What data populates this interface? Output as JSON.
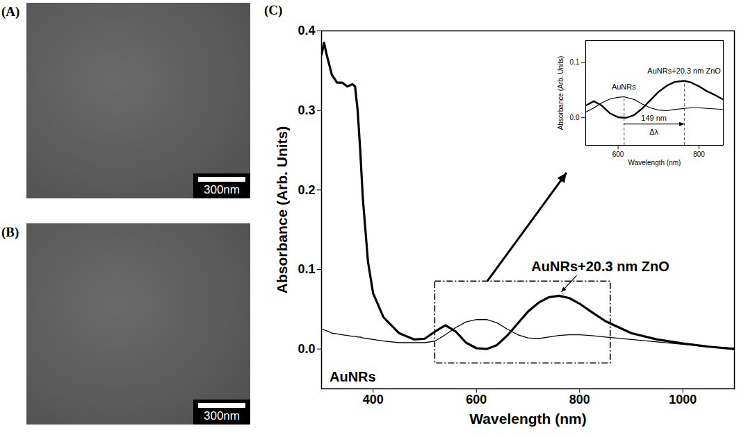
{
  "panels": [
    {
      "label": "(A)",
      "scale_bar": "300nm"
    },
    {
      "label": "(B)",
      "scale_bar": "300nm"
    },
    {
      "label": "(C)"
    }
  ],
  "chart_data": [
    {
      "type": "line",
      "x_label": "Wavelength (nm)",
      "y_label": "Absorbance (Arb. Units)",
      "x": [
        300,
        305,
        310,
        320,
        330,
        340,
        350,
        360,
        365,
        370,
        375,
        380,
        390,
        400,
        420,
        450,
        480,
        500,
        520,
        540,
        560,
        580,
        600,
        620,
        640,
        660,
        680,
        700,
        720,
        740,
        760,
        780,
        800,
        820,
        850,
        900,
        950,
        1000,
        1050,
        1100
      ],
      "series": [
        {
          "name": "AuNRs+20.3 nm ZnO",
          "color": "#000000",
          "values": [
            0.37,
            0.385,
            0.37,
            0.345,
            0.335,
            0.335,
            0.33,
            0.333,
            0.33,
            0.3,
            0.25,
            0.19,
            0.11,
            0.07,
            0.04,
            0.02,
            0.012,
            0.013,
            0.022,
            0.03,
            0.022,
            0.008,
            0.001,
            0,
            0.005,
            0.017,
            0.032,
            0.047,
            0.058,
            0.065,
            0.067,
            0.064,
            0.057,
            0.048,
            0.035,
            0.02,
            0.012,
            0.007,
            0.003,
            0
          ]
        },
        {
          "name": "AuNRs",
          "color": "#000000",
          "values": [
            0.025,
            0.024,
            0.023,
            0.02,
            0.019,
            0.018,
            0.017,
            0.016,
            0.016,
            0.015,
            0.015,
            0.014,
            0.013,
            0.012,
            0.01,
            0.008,
            0.008,
            0.008,
            0.01,
            0.018,
            0.027,
            0.034,
            0.037,
            0.037,
            0.033,
            0.025,
            0.018,
            0.014,
            0.013,
            0.015,
            0.017,
            0.018,
            0.018,
            0.017,
            0.015,
            0.012,
            0.009,
            0.006,
            0.003,
            0.001
          ]
        }
      ],
      "xlim": [
        300,
        1100
      ],
      "xticks": [
        400,
        600,
        800,
        1000
      ],
      "ylim": [
        -0.05,
        0.4
      ],
      "yticks": [
        {
          "value": 0,
          "label": "0.0"
        },
        {
          "value": 0.1,
          "label": "0.1"
        },
        {
          "value": 0.2,
          "label": "0.2"
        },
        {
          "value": 0.3,
          "label": "0.3"
        },
        {
          "value": 0.4,
          "label": "0.4"
        }
      ]
    },
    {
      "type": "line",
      "x_label": "Wavelength (nm)",
      "y_label": "Absorbance (Arb. Units)",
      "x": [
        520,
        540,
        560,
        580,
        600,
        615,
        620,
        640,
        660,
        680,
        700,
        720,
        740,
        764,
        780,
        800,
        820,
        840,
        860
      ],
      "series": [
        {
          "name": "AuNRs+20.3 nm ZnO",
          "color": "#000000",
          "values": [
            0.022,
            0.03,
            0.022,
            0.008,
            0.001,
            0,
            0,
            0.005,
            0.017,
            0.032,
            0.047,
            0.058,
            0.065,
            0.067,
            0.064,
            0.057,
            0.048,
            0.041,
            0.033
          ]
        },
        {
          "name": "AuNRs",
          "color": "#000000",
          "values": [
            0.01,
            0.018,
            0.027,
            0.034,
            0.037,
            0.038,
            0.037,
            0.033,
            0.025,
            0.018,
            0.014,
            0.013,
            0.015,
            0.017,
            0.018,
            0.018,
            0.017,
            0.016,
            0.015
          ]
        }
      ],
      "xlim": [
        520,
        860
      ],
      "xticks": [
        600,
        800
      ],
      "ylim": [
        -0.05,
        0.14
      ],
      "yticks": [
        {
          "value": 0,
          "label": "0.0"
        },
        {
          "value": 0.1,
          "label": "0.1"
        }
      ],
      "peak_shift": {
        "from": 615,
        "to": 764,
        "label": "149 nm",
        "symbol": "Δλ"
      }
    }
  ]
}
